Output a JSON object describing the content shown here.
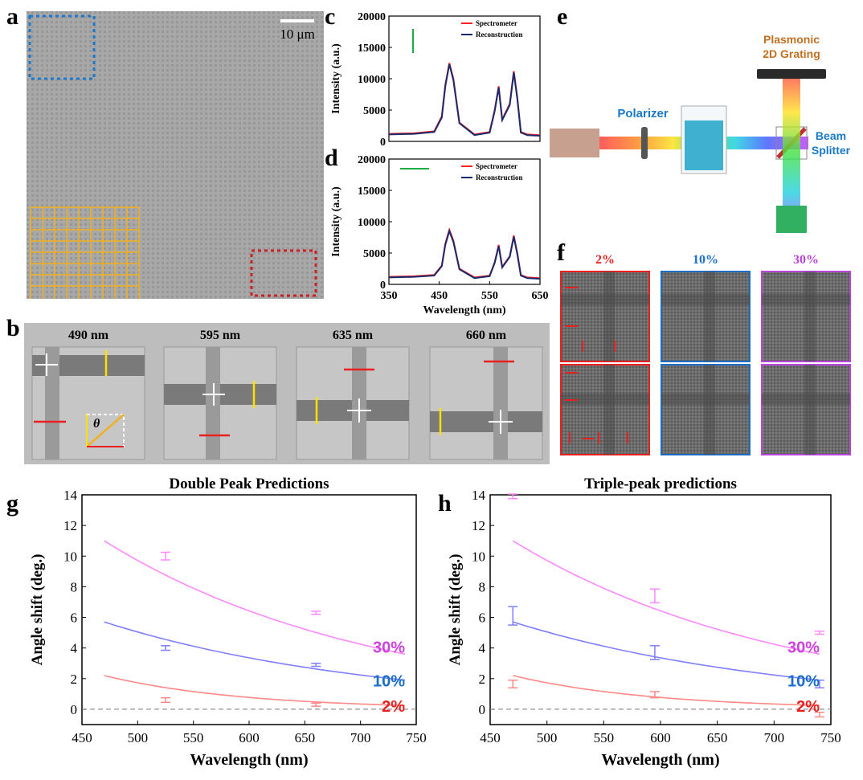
{
  "panel_labels": [
    "a",
    "b",
    "c",
    "d",
    "e",
    "f",
    "g",
    "h"
  ],
  "panel_a": {
    "scale_bar": "10 μm"
  },
  "panel_b": {
    "wavelengths": [
      "490 nm",
      "595 nm",
      "635 nm",
      "660 nm"
    ],
    "theta_label": "θ"
  },
  "chart_data": [
    {
      "id": "c",
      "type": "line",
      "xlabel": "",
      "ylabel": "Intensity (a.u.)",
      "xlim": [
        350,
        650
      ],
      "ylim": [
        0,
        20000
      ],
      "yticks": [
        "0",
        "5000",
        "10000",
        "15000",
        "20000"
      ],
      "series": [
        {
          "name": "Spectrometer",
          "color": "#ff2020",
          "x": [
            350,
            400,
            440,
            455,
            462,
            470,
            478,
            490,
            520,
            550,
            560,
            568,
            575,
            590,
            598,
            605,
            612,
            625,
            650
          ],
          "y": [
            1200,
            1300,
            1600,
            4000,
            9000,
            12500,
            10000,
            3000,
            1100,
            1500,
            5000,
            8800,
            3500,
            6000,
            11200,
            7000,
            1500,
            1100,
            1000
          ]
        },
        {
          "name": "Reconstruction",
          "color": "#1a2a6c",
          "x": [
            350,
            400,
            440,
            455,
            462,
            470,
            478,
            490,
            520,
            550,
            560,
            568,
            575,
            590,
            598,
            605,
            612,
            625,
            650
          ],
          "y": [
            1100,
            1200,
            1500,
            3800,
            8800,
            12300,
            9800,
            2900,
            1000,
            1400,
            4800,
            8600,
            3400,
            5800,
            11000,
            6800,
            1400,
            1000,
            900
          ]
        }
      ],
      "arrow": "vertical",
      "arrow_color": "#22aa44"
    },
    {
      "id": "d",
      "type": "line",
      "xlabel": "Wavelength (nm)",
      "ylabel": "Intensity (a.u.)",
      "xlim": [
        350,
        650
      ],
      "ylim": [
        0,
        20000
      ],
      "xticks": [
        "350",
        "450",
        "550",
        "650"
      ],
      "yticks": [
        "0",
        "5000",
        "10000",
        "15000",
        "20000"
      ],
      "series": [
        {
          "name": "Spectrometer",
          "color": "#ff2020",
          "x": [
            350,
            400,
            440,
            455,
            462,
            470,
            478,
            490,
            520,
            550,
            560,
            568,
            575,
            590,
            598,
            605,
            612,
            625,
            650
          ],
          "y": [
            1200,
            1300,
            1500,
            3000,
            6500,
            8700,
            7000,
            2500,
            1100,
            1400,
            3500,
            6300,
            2800,
            4500,
            7800,
            5000,
            1500,
            1100,
            1000
          ]
        },
        {
          "name": "Reconstruction",
          "color": "#1a2a6c",
          "x": [
            350,
            400,
            440,
            455,
            462,
            470,
            478,
            490,
            520,
            550,
            560,
            568,
            575,
            590,
            598,
            605,
            612,
            625,
            650
          ],
          "y": [
            1100,
            1200,
            1400,
            2900,
            6300,
            8500,
            6800,
            2400,
            1000,
            1300,
            3400,
            6100,
            2700,
            4400,
            7600,
            4800,
            1400,
            1000,
            900
          ]
        }
      ],
      "arrow": "horizontal",
      "arrow_color": "#22aa44"
    },
    {
      "id": "g",
      "type": "line",
      "title": "Double Peak Predictions",
      "xlabel": "Wavelength (nm)",
      "ylabel": "Angle shift (deg.)",
      "xlim": [
        450,
        750
      ],
      "ylim": [
        -1,
        14
      ],
      "xticks": [
        450,
        500,
        550,
        600,
        650,
        700,
        750
      ],
      "yticks": [
        0,
        2,
        4,
        6,
        8,
        10,
        12,
        14
      ],
      "series": [
        {
          "name": "30%",
          "color": "#ff88ff",
          "fit_start": 11.0,
          "fit_end": 3.6,
          "points": [
            {
              "x": 525,
              "y": 10.0,
              "err": 0.25
            },
            {
              "x": 660,
              "y": 6.3,
              "err": 0.1
            }
          ]
        },
        {
          "name": "10%",
          "color": "#7f7fff",
          "fit_start": 5.7,
          "fit_end": 1.9,
          "points": [
            {
              "x": 525,
              "y": 4.0,
              "err": 0.15
            },
            {
              "x": 660,
              "y": 2.9,
              "err": 0.1
            }
          ]
        },
        {
          "name": "2%",
          "color": "#ff8888",
          "fit_start": 2.2,
          "fit_end": 0.25,
          "points": [
            {
              "x": 525,
              "y": 0.6,
              "err": 0.15
            },
            {
              "x": 660,
              "y": 0.3,
              "err": 0.1
            }
          ]
        }
      ],
      "labels": [
        {
          "text": "30%",
          "color": "#cc44dd"
        },
        {
          "text": "10%",
          "color": "#1a6ec8"
        },
        {
          "text": "2%",
          "color": "#e82020"
        }
      ],
      "zero_line": true
    },
    {
      "id": "h",
      "type": "line",
      "title": "Triple-peak predictions",
      "xlabel": "Wavelength (nm)",
      "ylabel": "Angle shift (deg.)",
      "xlim": [
        450,
        750
      ],
      "ylim": [
        -1,
        14
      ],
      "xticks": [
        450,
        500,
        550,
        600,
        650,
        700,
        750
      ],
      "yticks": [
        0,
        2,
        4,
        6,
        8,
        10,
        12,
        14
      ],
      "series": [
        {
          "name": "30%",
          "color": "#ff88ff",
          "fit_start": 11.0,
          "fit_end": 3.6,
          "points": [
            {
              "x": 470,
              "y": 13.9,
              "err": 0.15
            },
            {
              "x": 595,
              "y": 7.4,
              "err": 0.45
            },
            {
              "x": 740,
              "y": 5.0,
              "err": 0.1
            }
          ]
        },
        {
          "name": "10%",
          "color": "#7f7fff",
          "fit_start": 5.7,
          "fit_end": 1.9,
          "points": [
            {
              "x": 470,
              "y": 6.1,
              "err": 0.6
            },
            {
              "x": 595,
              "y": 3.7,
              "err": 0.45
            },
            {
              "x": 740,
              "y": 1.65,
              "err": 0.25
            }
          ]
        },
        {
          "name": "2%",
          "color": "#ff8888",
          "fit_start": 2.2,
          "fit_end": 0.25,
          "points": [
            {
              "x": 470,
              "y": 1.65,
              "err": 0.25
            },
            {
              "x": 595,
              "y": 0.95,
              "err": 0.2
            },
            {
              "x": 740,
              "y": -0.35,
              "err": 0.15
            }
          ]
        }
      ],
      "labels": [
        {
          "text": "30%",
          "color": "#cc44dd"
        },
        {
          "text": "10%",
          "color": "#1a6ec8"
        },
        {
          "text": "2%",
          "color": "#e82020"
        }
      ],
      "zero_line": true
    }
  ],
  "panel_e": {
    "polarizer": "Polarizer",
    "grating": [
      "Plasmonic",
      "2D Grating"
    ],
    "splitter": [
      "Beam",
      "Splitter"
    ]
  },
  "panel_f": {
    "columns": [
      {
        "label": "2%",
        "color": "#e82020"
      },
      {
        "label": "10%",
        "color": "#1a6ec8"
      },
      {
        "label": "30%",
        "color": "#bb44dd"
      }
    ]
  }
}
